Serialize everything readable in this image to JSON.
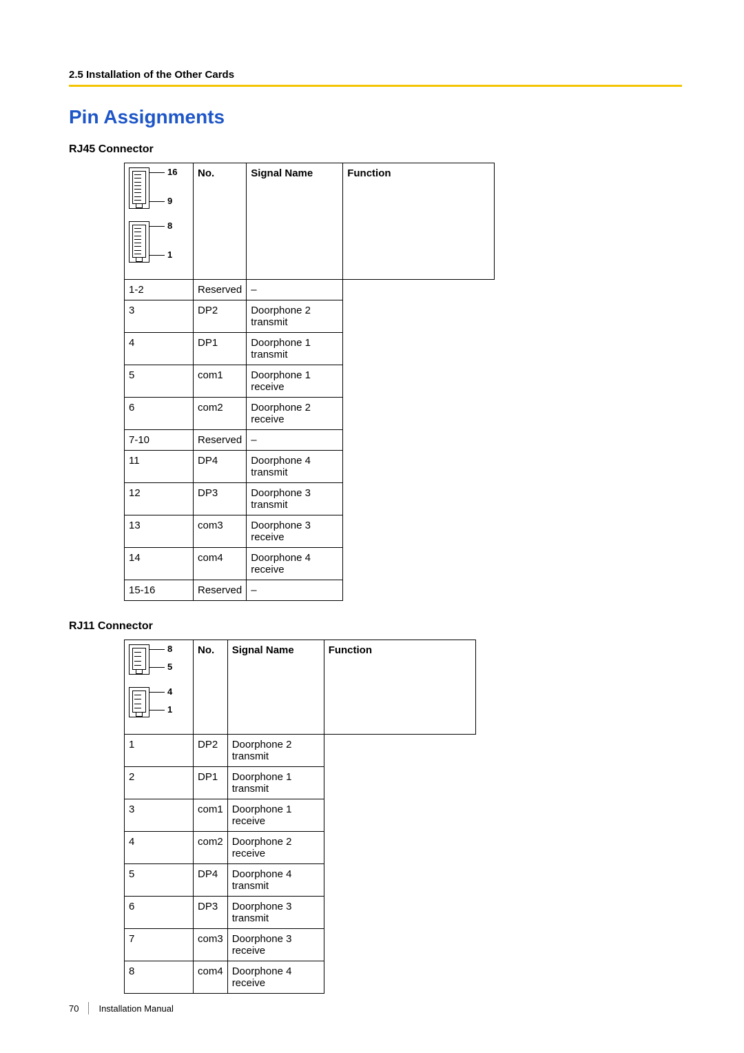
{
  "section_header": "2.5 Installation of the Other Cards",
  "main_heading": "Pin Assignments",
  "accent_color": "#f5c400",
  "heading_color": "#1e56c8",
  "rj45": {
    "title": "RJ45 Connector",
    "headers": {
      "no": "No.",
      "signal": "Signal Name",
      "function": "Function"
    },
    "diagram": {
      "top_labels": [
        "16",
        "9"
      ],
      "bottom_labels": [
        "8",
        "1"
      ],
      "pins_per_jack": 8
    },
    "rows": [
      {
        "no": "1-2",
        "signal": "Reserved",
        "function": "–"
      },
      {
        "no": "3",
        "signal": "DP2",
        "function": "Doorphone 2 transmit"
      },
      {
        "no": "4",
        "signal": "DP1",
        "function": "Doorphone 1 transmit"
      },
      {
        "no": "5",
        "signal": "com1",
        "function": "Doorphone 1 receive"
      },
      {
        "no": "6",
        "signal": "com2",
        "function": "Doorphone 2 receive"
      },
      {
        "no": "7-10",
        "signal": "Reserved",
        "function": "–"
      },
      {
        "no": "11",
        "signal": "DP4",
        "function": "Doorphone 4 transmit"
      },
      {
        "no": "12",
        "signal": "DP3",
        "function": "Doorphone 3 transmit"
      },
      {
        "no": "13",
        "signal": "com3",
        "function": "Doorphone 3 receive"
      },
      {
        "no": "14",
        "signal": "com4",
        "function": "Doorphone 4 receive"
      },
      {
        "no": "15-16",
        "signal": "Reserved",
        "function": "–"
      }
    ]
  },
  "rj11": {
    "title": "RJ11 Connector",
    "headers": {
      "no": "No.",
      "signal": "Signal Name",
      "function": "Function"
    },
    "diagram": {
      "top_labels": [
        "8",
        "5"
      ],
      "bottom_labels": [
        "4",
        "1"
      ],
      "pins_per_jack": 4
    },
    "rows": [
      {
        "no": "1",
        "signal": "DP2",
        "function": "Doorphone 2 transmit"
      },
      {
        "no": "2",
        "signal": "DP1",
        "function": "Doorphone 1 transmit"
      },
      {
        "no": "3",
        "signal": "com1",
        "function": "Doorphone 1 receive"
      },
      {
        "no": "4",
        "signal": "com2",
        "function": "Doorphone 2 receive"
      },
      {
        "no": "5",
        "signal": "DP4",
        "function": "Doorphone 4 transmit"
      },
      {
        "no": "6",
        "signal": "DP3",
        "function": "Doorphone 3 transmit"
      },
      {
        "no": "7",
        "signal": "com3",
        "function": "Doorphone 3 receive"
      },
      {
        "no": "8",
        "signal": "com4",
        "function": "Doorphone 4 receive"
      }
    ]
  },
  "footer": {
    "page": "70",
    "title": "Installation Manual"
  }
}
